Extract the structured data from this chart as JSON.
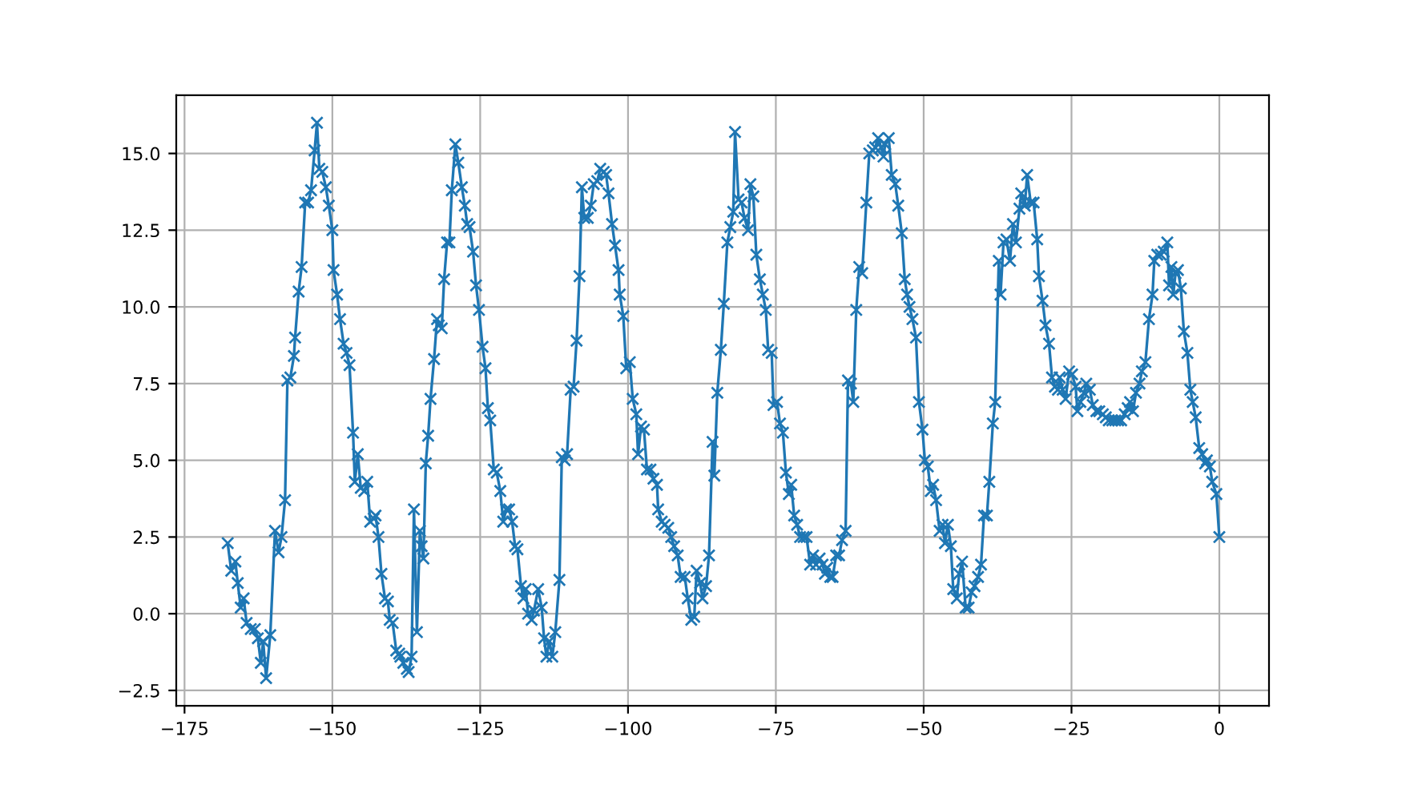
{
  "chart_data": {
    "type": "line",
    "marker": "cross",
    "line_style": "solid",
    "grid": true,
    "xlim": [
      -176.4,
      8.4
    ],
    "ylim": [
      -3.0,
      16.9
    ],
    "xticks": [
      {
        "value": -175,
        "label": "−175"
      },
      {
        "value": -150,
        "label": "−150"
      },
      {
        "value": -125,
        "label": "−125"
      },
      {
        "value": -100,
        "label": "−100"
      },
      {
        "value": -75,
        "label": "−75"
      },
      {
        "value": -50,
        "label": "−50"
      },
      {
        "value": -25,
        "label": "−25"
      },
      0
    ],
    "yticks": [
      {
        "value": -2.5,
        "label": "−2.5"
      },
      {
        "value": 0,
        "label": "0.0"
      },
      {
        "value": 2.5,
        "label": "2.5"
      },
      {
        "value": 5,
        "label": "5.0"
      },
      {
        "value": 7.5,
        "label": "7.5"
      },
      {
        "value": 10,
        "label": "10.0"
      },
      {
        "value": 12.5,
        "label": "12.5"
      },
      {
        "value": 15,
        "label": "15.0"
      }
    ],
    "series": [
      {
        "color": "#1f77b4",
        "x": [
          -167.7,
          -167.1,
          -166.4,
          -166.0,
          -165.5,
          -165.0,
          -164.5,
          -163.8,
          -163.1,
          -162.6,
          -162.1,
          -161.7,
          -161.2,
          -160.5,
          -159.7,
          -159.1,
          -158.6,
          -158.0,
          -157.6,
          -157.1,
          -156.5,
          -156.3,
          -155.7,
          -155.2,
          -154.6,
          -154.1,
          -153.6,
          -153.0,
          -152.6,
          -152.2,
          -151.7,
          -151.1,
          -150.6,
          -150.0,
          -149.8,
          -149.2,
          -148.7,
          -148.1,
          -147.6,
          -147.1,
          -146.5,
          -146.2,
          -145.7,
          -145.2,
          -144.6,
          -144.1,
          -143.6,
          -143.0,
          -142.7,
          -142.2,
          -141.7,
          -141.1,
          -140.6,
          -140.3,
          -139.8,
          -139.2,
          -138.7,
          -138.5,
          -138.0,
          -137.4,
          -137.1,
          -136.6,
          -136.2,
          -135.7,
          -135.2,
          -134.9,
          -134.6,
          -134.2,
          -133.8,
          -133.4,
          -132.8,
          -132.3,
          -132.0,
          -131.5,
          -131.1,
          -130.6,
          -130.2,
          -129.8,
          -129.2,
          -128.7,
          -128.1,
          -127.6,
          -127.2,
          -126.8,
          -126.2,
          -125.7,
          -125.2,
          -124.6,
          -124.1,
          -123.7,
          -123.3,
          -122.7,
          -122.2,
          -121.6,
          -121.1,
          -120.6,
          -120.1,
          -119.6,
          -119.1,
          -118.7,
          -118.1,
          -117.7,
          -117.3,
          -116.9,
          -116.3,
          -115.9,
          -115.2,
          -114.6,
          -114.2,
          -113.8,
          -113.3,
          -112.8,
          -112.3,
          -111.6,
          -111.2,
          -110.7,
          -110.3,
          -109.7,
          -109.2,
          -108.7,
          -108.2,
          -107.8,
          -107.4,
          -106.8,
          -106.3,
          -105.8,
          -105.2,
          -104.7,
          -104.1,
          -103.7,
          -103.3,
          -102.7,
          -102.2,
          -101.6,
          -101.4,
          -100.8,
          -100.3,
          -99.7,
          -99.2,
          -98.6,
          -98.3,
          -97.8,
          -97.3,
          -96.8,
          -96.2,
          -95.7,
          -95.1,
          -94.9,
          -94.3,
          -93.8,
          -93.2,
          -92.7,
          -92.2,
          -91.6,
          -91.1,
          -90.4,
          -89.9,
          -89.3,
          -88.8,
          -88.4,
          -87.8,
          -87.4,
          -86.8,
          -86.3,
          -85.7,
          -85.4,
          -84.9,
          -84.3,
          -83.8,
          -83.2,
          -82.7,
          -82.2,
          -81.9,
          -81.3,
          -80.8,
          -80.3,
          -79.7,
          -79.3,
          -78.8,
          -78.3,
          -77.7,
          -77.2,
          -76.7,
          -76.3,
          -75.7,
          -75.4,
          -74.8,
          -74.3,
          -73.8,
          -73.3,
          -72.8,
          -72.4,
          -71.9,
          -71.4,
          -70.9,
          -70.3,
          -69.8,
          -69.2,
          -68.7,
          -68.2,
          -67.6,
          -67.1,
          -66.7,
          -66.3,
          -65.8,
          -65.4,
          -64.8,
          -64.3,
          -63.8,
          -63.2,
          -62.8,
          -62.3,
          -61.9,
          -61.4,
          -60.9,
          -60.4,
          -59.7,
          -59.2,
          -58.6,
          -58.2,
          -57.7,
          -57.2,
          -56.8,
          -56.5,
          -55.9,
          -55.4,
          -54.8,
          -54.3,
          -53.7,
          -53.2,
          -52.8,
          -52.4,
          -51.9,
          -51.3,
          -50.8,
          -50.2,
          -49.8,
          -49.3,
          -48.8,
          -48.4,
          -47.9,
          -47.3,
          -46.8,
          -46.4,
          -45.9,
          -45.4,
          -45.0,
          -44.4,
          -44.0,
          -43.5,
          -42.9,
          -42.4,
          -41.9,
          -41.4,
          -40.8,
          -40.3,
          -39.8,
          -39.3,
          -38.9,
          -38.3,
          -37.9,
          -37.3,
          -37.0,
          -36.5,
          -36.0,
          -35.4,
          -34.9,
          -34.4,
          -33.8,
          -33.5,
          -32.9,
          -32.5,
          -31.9,
          -31.4,
          -30.8,
          -30.5,
          -29.9,
          -29.4,
          -28.8,
          -28.3,
          -27.8,
          -27.3,
          -27.0,
          -26.5,
          -26.0,
          -25.4,
          -24.9,
          -24.3,
          -24.0,
          -23.5,
          -22.9,
          -22.5,
          -21.9,
          -21.4,
          -20.8,
          -20.3,
          -19.7,
          -19.2,
          -18.7,
          -18.1,
          -17.6,
          -17.1,
          -16.6,
          -16.0,
          -15.5,
          -15.1,
          -14.6,
          -14.1,
          -13.5,
          -13.1,
          -12.5,
          -11.9,
          -11.3,
          -11.0,
          -10.5,
          -9.9,
          -9.4,
          -8.8,
          -8.5,
          -8.1,
          -7.8,
          -7.4,
          -7.0,
          -6.5,
          -6.0,
          -5.4,
          -4.9,
          -4.5,
          -4.0,
          -3.4,
          -2.9,
          -2.4,
          -2.1,
          -1.6,
          -1.2,
          -0.5,
          0.0
        ],
        "values": [
          2.3,
          1.4,
          1.7,
          1.0,
          0.2,
          0.5,
          -0.3,
          -0.5,
          -0.5,
          -0.8,
          -1.6,
          -0.9,
          -2.1,
          -0.7,
          2.7,
          2.0,
          2.5,
          3.7,
          7.6,
          7.7,
          8.4,
          9.0,
          10.5,
          11.3,
          13.4,
          13.4,
          13.8,
          15.1,
          16.0,
          14.5,
          14.4,
          13.9,
          13.3,
          12.5,
          11.2,
          10.4,
          9.6,
          8.8,
          8.5,
          8.1,
          5.9,
          4.3,
          5.2,
          4.1,
          4.0,
          4.3,
          3.0,
          3.1,
          3.2,
          2.5,
          1.3,
          0.5,
          0.4,
          -0.2,
          -0.3,
          -1.2,
          -1.3,
          -1.4,
          -1.6,
          -1.8,
          -1.9,
          -1.4,
          3.4,
          -0.6,
          2.7,
          2.2,
          1.8,
          4.9,
          5.8,
          7.0,
          8.3,
          9.6,
          9.4,
          9.3,
          10.9,
          12.1,
          12.1,
          13.8,
          15.3,
          14.7,
          13.9,
          13.3,
          12.7,
          12.6,
          11.8,
          10.7,
          9.9,
          8.7,
          8.0,
          6.7,
          6.3,
          4.7,
          4.6,
          4.0,
          3.0,
          3.4,
          3.4,
          3.0,
          2.2,
          2.1,
          0.9,
          0.5,
          0.8,
          0.0,
          -0.2,
          0.1,
          0.8,
          0.2,
          -0.8,
          -1.4,
          -0.9,
          -1.4,
          -0.6,
          1.1,
          5.1,
          5.0,
          5.2,
          7.3,
          7.4,
          8.9,
          11.0,
          13.9,
          12.9,
          12.9,
          13.3,
          14.0,
          14.1,
          14.5,
          14.4,
          14.3,
          13.7,
          12.7,
          12.0,
          11.2,
          10.4,
          9.7,
          8.0,
          8.2,
          7.0,
          6.5,
          5.2,
          6.1,
          6.0,
          4.7,
          4.7,
          4.4,
          4.2,
          3.4,
          3.0,
          2.9,
          2.8,
          2.5,
          2.2,
          1.9,
          1.2,
          1.2,
          0.5,
          -0.2,
          -0.1,
          1.4,
          1.0,
          0.5,
          0.9,
          1.9,
          5.6,
          4.5,
          7.2,
          8.6,
          10.1,
          12.1,
          12.6,
          13.1,
          15.7,
          13.5,
          13.4,
          12.9,
          12.5,
          14.0,
          13.6,
          11.7,
          10.9,
          10.4,
          9.9,
          8.6,
          8.5,
          6.8,
          6.9,
          6.2,
          5.9,
          4.6,
          3.9,
          4.2,
          3.2,
          2.9,
          2.5,
          2.5,
          2.5,
          1.6,
          1.9,
          1.6,
          1.8,
          1.6,
          1.3,
          1.5,
          1.2,
          1.2,
          1.9,
          1.9,
          2.4,
          2.7,
          7.6,
          7.5,
          6.9,
          9.9,
          11.3,
          11.1,
          13.4,
          15.0,
          15.1,
          15.2,
          15.5,
          15.2,
          14.9,
          15.3,
          15.5,
          14.3,
          14.0,
          13.3,
          12.4,
          10.9,
          10.4,
          10.0,
          9.6,
          9.0,
          6.9,
          6.0,
          5.0,
          4.8,
          4.0,
          4.2,
          3.7,
          2.7,
          2.9,
          2.3,
          2.9,
          2.2,
          0.8,
          0.5,
          1.3,
          1.7,
          0.2,
          0.2,
          0.7,
          0.9,
          1.2,
          1.6,
          3.2,
          3.2,
          4.3,
          6.2,
          6.9,
          11.5,
          10.4,
          12.1,
          12.2,
          11.5,
          12.7,
          12.1,
          13.2,
          13.7,
          13.3,
          14.3,
          13.4,
          13.4,
          12.2,
          11.0,
          10.2,
          9.4,
          8.8,
          7.7,
          7.4,
          7.3,
          7.7,
          7.3,
          7.0,
          7.9,
          7.8,
          7.4,
          6.6,
          6.9,
          7.2,
          7.5,
          7.3,
          6.8,
          6.6,
          6.6,
          6.5,
          6.4,
          6.3,
          6.3,
          6.3,
          6.3,
          6.3,
          6.5,
          6.7,
          6.9,
          6.6,
          7.2,
          7.5,
          7.9,
          8.2,
          9.6,
          10.4,
          11.5,
          11.7,
          11.7,
          11.8,
          12.1,
          10.7,
          11.3,
          10.4,
          11.1,
          11.2,
          10.6,
          9.2,
          8.5,
          7.3,
          6.9,
          6.4,
          5.4,
          5.2,
          4.9,
          5.0,
          4.8,
          4.3,
          3.9,
          2.5
        ]
      }
    ]
  }
}
